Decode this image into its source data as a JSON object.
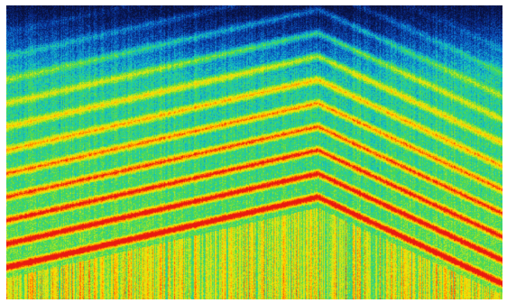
{
  "image": {
    "subject": "spectrogram",
    "colormap": [
      "#08103a",
      "#0a2a8a",
      "#0b6fd0",
      "#16c8c0",
      "#4bd94a",
      "#c8e81e",
      "#ffe000",
      "#ff8a00",
      "#e81a10"
    ],
    "watermark": ""
  }
}
